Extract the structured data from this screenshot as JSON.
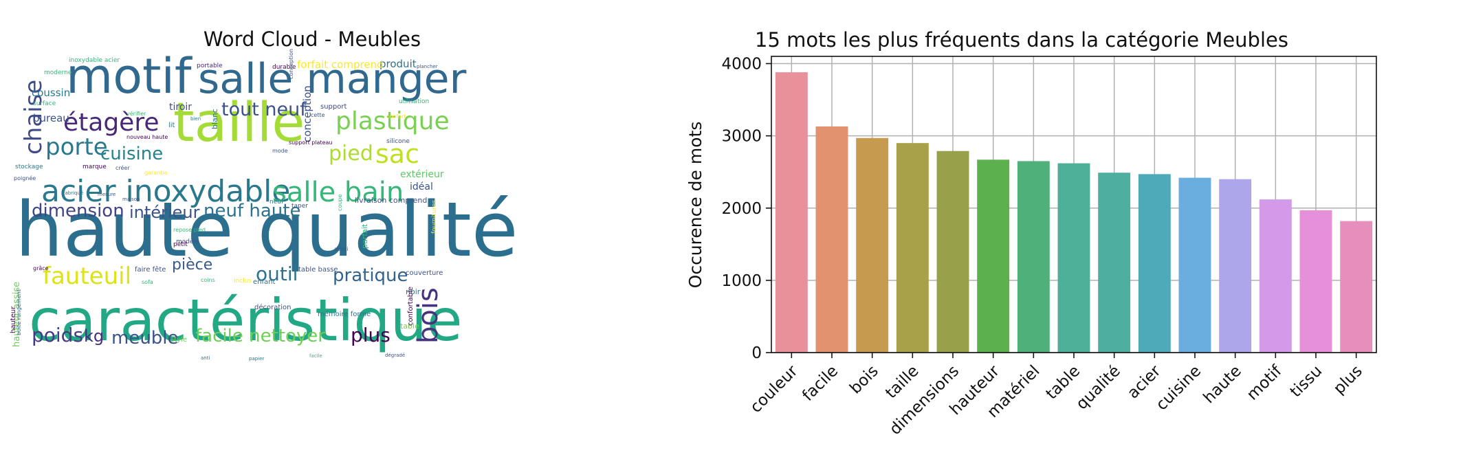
{
  "word_cloud": {
    "title": "Word Cloud - Meubles",
    "words": [
      {
        "text": "haute qualité",
        "color": "#2c6e8e"
      },
      {
        "text": "caractéristique",
        "color": "#22a884"
      },
      {
        "text": "taille",
        "color": "#a5db36"
      },
      {
        "text": "motif",
        "color": "#31688e"
      },
      {
        "text": "salle manger",
        "color": "#31688e"
      },
      {
        "text": "acier inoxydable",
        "color": "#2a788e"
      },
      {
        "text": "étagère",
        "color": "#482878"
      },
      {
        "text": "salle bain",
        "color": "#35b779"
      },
      {
        "text": "plastique",
        "color": "#7ad151"
      },
      {
        "text": "porte",
        "color": "#2a788e"
      },
      {
        "text": "sac",
        "color": "#c2df23"
      },
      {
        "text": "chaise",
        "color": "#3e4a89"
      },
      {
        "text": "cuisine",
        "color": "#26828e"
      },
      {
        "text": "tout neuf",
        "color": "#3b528b"
      },
      {
        "text": "pied",
        "color": "#addc30"
      },
      {
        "text": "dimension",
        "color": "#414487"
      },
      {
        "text": "intérieur",
        "color": "#3b528b"
      },
      {
        "text": "neuf haute",
        "color": "#2c728e"
      },
      {
        "text": "bois",
        "color": "#46327e"
      },
      {
        "text": "fauteuil",
        "color": "#dde318"
      },
      {
        "text": "outil",
        "color": "#2c728e"
      },
      {
        "text": "pièce",
        "color": "#38598c"
      },
      {
        "text": "pratique",
        "color": "#33638d"
      },
      {
        "text": "poids",
        "color": "#443983"
      },
      {
        "text": "kg",
        "color": "#472d7b"
      },
      {
        "text": "meuble",
        "color": "#3b528b"
      },
      {
        "text": "facile nettoyer",
        "color": "#6ece58"
      },
      {
        "text": "plus",
        "color": "#440154"
      },
      {
        "text": "coussin",
        "color": "#2a788e"
      },
      {
        "text": "bureau",
        "color": "#3b528b"
      },
      {
        "text": "tiroir",
        "color": "#3e4a89"
      },
      {
        "text": "conception",
        "color": "#3b528b"
      },
      {
        "text": "produit",
        "color": "#2c728e"
      },
      {
        "text": "forfait comprend",
        "color": "#fde725"
      },
      {
        "text": "extérieur",
        "color": "#5ec962"
      },
      {
        "text": "idéal",
        "color": "#3b528b"
      },
      {
        "text": "hauteur assise",
        "color": "#6ece58"
      },
      {
        "text": "moderne",
        "color": "#35b779"
      },
      {
        "text": "durable",
        "color": "#440154"
      },
      {
        "text": "portable",
        "color": "#482878"
      },
      {
        "text": "blanc",
        "color": "#2c728e"
      },
      {
        "text": "lit",
        "color": "#2a788e"
      },
      {
        "text": "support",
        "color": "#3e4a89"
      },
      {
        "text": "stockage",
        "color": "#2a788e"
      },
      {
        "text": "poignée",
        "color": "#3b528b"
      },
      {
        "text": "silicone",
        "color": "#3b528b"
      },
      {
        "text": "parfait",
        "color": "#35b779"
      },
      {
        "text": "couverture",
        "color": "#3b528b"
      },
      {
        "text": "noir",
        "color": "#2a788e"
      },
      {
        "text": "table",
        "color": "#7ad151"
      },
      {
        "text": "confortable",
        "color": "#440154"
      },
      {
        "text": "style",
        "color": "#6ece58"
      },
      {
        "text": "modèle",
        "color": "#3b528b"
      },
      {
        "text": "petit",
        "color": "#440154"
      },
      {
        "text": "aussi",
        "color": "#3b528b"
      },
      {
        "text": "enfant",
        "color": "#2c728e"
      },
      {
        "text": "décoration",
        "color": "#3b528b"
      },
      {
        "text": "cette",
        "color": "#3b528b"
      },
      {
        "text": "mode",
        "color": "#3b528b"
      },
      {
        "text": "utilisation",
        "color": "#35b779"
      },
      {
        "text": "livraison comprend",
        "color": "#3b528b"
      },
      {
        "text": "mémoire forme",
        "color": "#2c728e"
      },
      {
        "text": "table basse",
        "color": "#3b528b"
      },
      {
        "text": "faire fête",
        "color": "#3b528b"
      },
      {
        "text": "boîte rangement",
        "color": "#2c728e"
      },
      {
        "text": "repose pied",
        "color": "#35b779"
      },
      {
        "text": "taper",
        "color": "#3b528b"
      },
      {
        "text": "marque",
        "color": "#440154"
      },
      {
        "text": "nouveau haute",
        "color": "#440154"
      },
      {
        "text": "coupe",
        "color": "#35b779"
      },
      {
        "text": "bien",
        "color": "#2a788e"
      },
      {
        "text": "inoxydable acier",
        "color": "#35b779"
      },
      {
        "text": "plancher",
        "color": "#3b528b"
      },
      {
        "text": "garantie",
        "color": "#fde725"
      },
      {
        "text": "surface",
        "color": "#35b779"
      },
      {
        "text": "créer",
        "color": "#3b528b"
      },
      {
        "text": "grâce",
        "color": "#440154"
      },
      {
        "text": "hauteur",
        "color": "#440154"
      },
      {
        "text": "fournitures",
        "color": "#fde725"
      },
      {
        "text": "sofa",
        "color": "#35b779"
      },
      {
        "text": "fabriqué",
        "color": "#2c728e"
      },
      {
        "text": "conception",
        "color": "#3b528b"
      },
      {
        "text": "confort",
        "color": "#fde725"
      },
      {
        "text": "maison",
        "color": "#3b528b"
      },
      {
        "text": "vérifier",
        "color": "#35b779"
      },
      {
        "text": "inclus",
        "color": "#fde725"
      },
      {
        "text": "support plateau",
        "color": "#440154"
      },
      {
        "text": "coins",
        "color": "#35b779"
      },
      {
        "text": "mesure",
        "color": "#3b528b"
      },
      {
        "text": "neuf",
        "color": "#2c728e"
      },
      {
        "text": "anti",
        "color": "#2c728e"
      },
      {
        "text": "papier",
        "color": "#2c728e"
      },
      {
        "text": "facile",
        "color": "#35b779"
      },
      {
        "text": "dégradé",
        "color": "#3b528b"
      }
    ]
  },
  "bar_chart": {
    "title": "15 mots les plus fréquents dans la catégorie Meubles",
    "ylabel": "Occurence de mots"
  },
  "chart_data": {
    "type": "bar",
    "title": "15 mots les plus fréquents dans la catégorie Meubles",
    "xlabel": "",
    "ylabel": "Occurence de mots",
    "ylim": [
      0,
      4100
    ],
    "yticks": [
      0,
      1000,
      2000,
      3000,
      4000
    ],
    "grid": true,
    "categories": [
      "couleur",
      "facile",
      "bois",
      "taille",
      "dimensions",
      "hauteur",
      "matériel",
      "table",
      "qualité",
      "acier",
      "cuisine",
      "haute",
      "motif",
      "tissu",
      "plus"
    ],
    "values": [
      3880,
      3130,
      2970,
      2900,
      2790,
      2670,
      2650,
      2620,
      2490,
      2470,
      2420,
      2400,
      2120,
      1970,
      1820
    ],
    "colors": [
      "#e8919a",
      "#e2926e",
      "#c69b4f",
      "#a9a04a",
      "#98a04a",
      "#5cb04d",
      "#4fb07a",
      "#4fb09a",
      "#4eae9f",
      "#4ea9b8",
      "#6aaee0",
      "#aea6eb",
      "#d29ae8",
      "#e590d8",
      "#e78fbc"
    ]
  }
}
